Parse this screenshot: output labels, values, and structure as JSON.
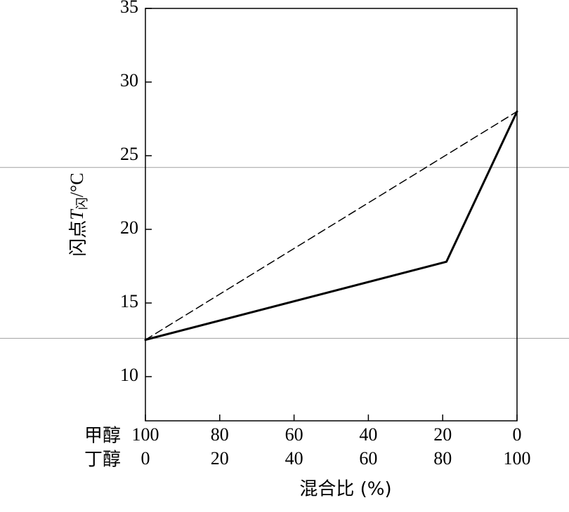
{
  "chart_data": {
    "type": "line",
    "ylabel": "闪点T闪/°C",
    "ylabel_parts": {
      "main": "闪点",
      "var": "T",
      "sub": "闪",
      "unit": "/°C"
    },
    "xlabel": "混合比 (%)",
    "ylim": [
      7,
      35
    ],
    "xlim": [
      100,
      0
    ],
    "yticks": [
      "10",
      "15",
      "20",
      "25",
      "30",
      "35"
    ],
    "yticks_values": [
      10,
      15,
      20,
      25,
      30,
      35
    ],
    "xticks_values": [
      100,
      80,
      60,
      40,
      20,
      0
    ],
    "x_rows": [
      {
        "label": "甲醇",
        "ticks": [
          "100",
          "80",
          "60",
          "40",
          "20",
          "0"
        ]
      },
      {
        "label": "丁醇",
        "ticks": [
          "0",
          "20",
          "40",
          "60",
          "80",
          "100"
        ]
      }
    ],
    "series": [
      {
        "style": "solid",
        "x": [
          100,
          19,
          0
        ],
        "y": [
          12.5,
          17.8,
          28
        ]
      },
      {
        "style": "dashed",
        "x": [
          100,
          0
        ],
        "y": [
          12.5,
          28
        ]
      }
    ],
    "grid": false,
    "colors": {
      "line": "#000000",
      "axes": "#000000",
      "hline": "#a0a0a0"
    },
    "reference_lines_y": [
      24.2,
      12.6
    ]
  }
}
